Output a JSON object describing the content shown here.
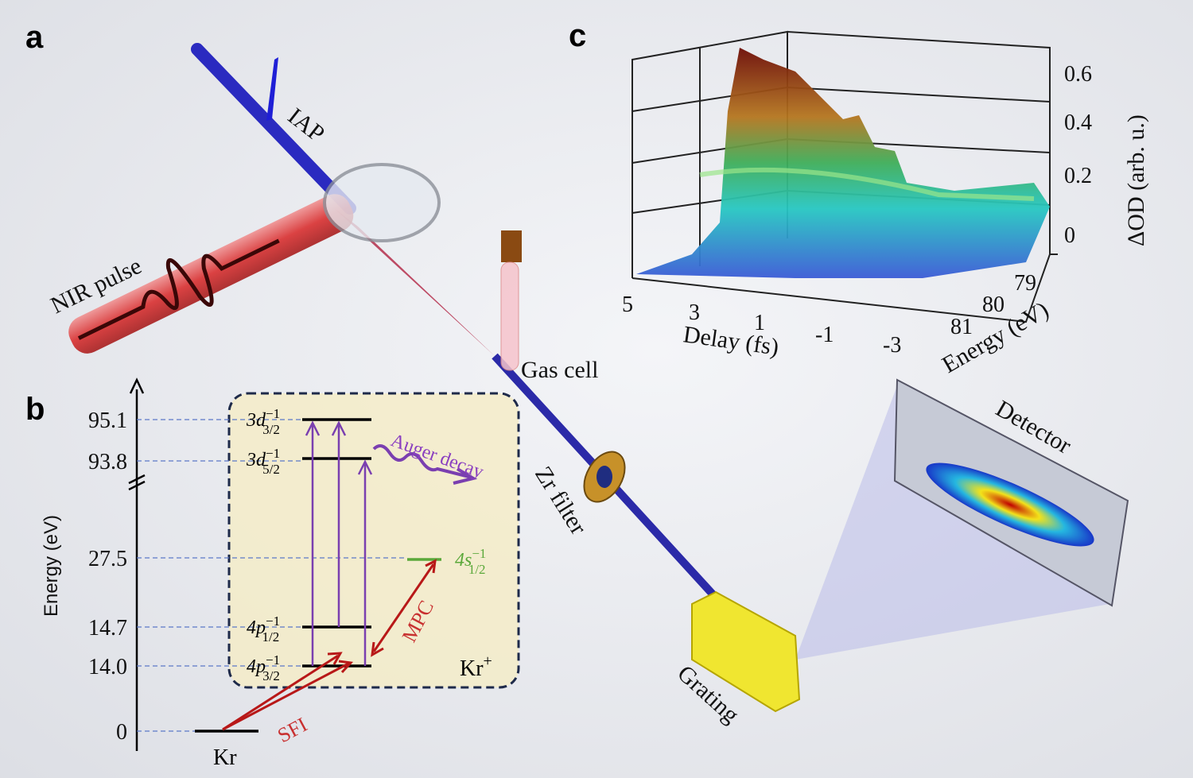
{
  "panel_a": {
    "label": "a",
    "beams": {
      "iap": "IAP",
      "nir": "NIR pulse"
    },
    "components": {
      "gas_cell": "Gas cell",
      "zr_filter": "Zr filter",
      "grating": "Grating",
      "detector": "Detector"
    }
  },
  "panel_b": {
    "label": "b",
    "axis_label": "Energy (eV)",
    "levels": [
      {
        "energy": "95.1",
        "state": {
          "base": "3d",
          "sub": "3/2",
          "sup": "−1"
        }
      },
      {
        "energy": "93.8",
        "state": {
          "base": "3d",
          "sub": "5/2",
          "sup": "−1"
        }
      },
      {
        "energy": "27.5",
        "state": {
          "base": "4s",
          "sub": "1/2",
          "sup": "−1"
        }
      },
      {
        "energy": "14.7",
        "state": {
          "base": "4p",
          "sub": "1/2",
          "sup": "−1"
        }
      },
      {
        "energy": "14.0",
        "state": {
          "base": "4p",
          "sub": "3/2",
          "sup": "−1"
        }
      },
      {
        "energy": "0",
        "state": {
          "base": "Kr"
        }
      }
    ],
    "processes": {
      "auger": "Auger decay",
      "mpc": "MPC",
      "sfi": "SFI"
    },
    "ion": {
      "base": "Kr",
      "sup": "+"
    }
  },
  "panel_c": {
    "label": "c",
    "z_axis": {
      "label": "ΔOD (arb. u.)",
      "ticks": [
        0.6,
        0.4,
        0.2,
        0
      ]
    },
    "delay_axis": {
      "label": "Delay (fs)",
      "ticks": [
        5,
        3,
        1,
        -1,
        -3
      ]
    },
    "energy_axis": {
      "label": "Energy (eV)",
      "ticks": [
        79,
        80,
        81
      ]
    }
  }
}
